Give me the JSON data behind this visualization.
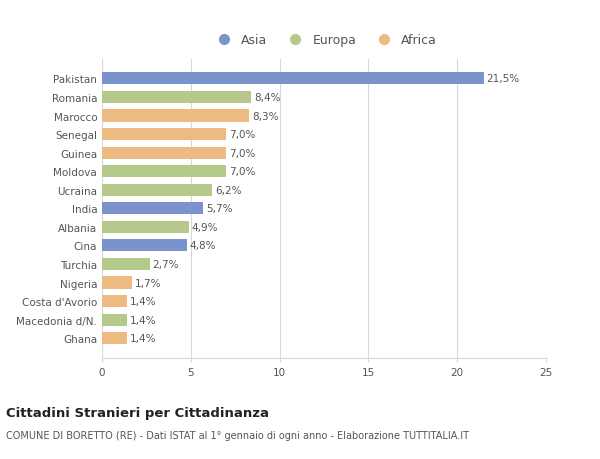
{
  "categories": [
    "Pakistan",
    "Romania",
    "Marocco",
    "Senegal",
    "Guinea",
    "Moldova",
    "Ucraina",
    "India",
    "Albania",
    "Cina",
    "Turchia",
    "Nigeria",
    "Costa d'Avorio",
    "Macedonia d/N.",
    "Ghana"
  ],
  "values": [
    21.5,
    8.4,
    8.3,
    7.0,
    7.0,
    7.0,
    6.2,
    5.7,
    4.9,
    4.8,
    2.7,
    1.7,
    1.4,
    1.4,
    1.4
  ],
  "labels": [
    "21,5%",
    "8,4%",
    "8,3%",
    "7,0%",
    "7,0%",
    "7,0%",
    "6,2%",
    "5,7%",
    "4,9%",
    "4,8%",
    "2,7%",
    "1,7%",
    "1,4%",
    "1,4%",
    "1,4%"
  ],
  "continents": [
    "Asia",
    "Europa",
    "Africa",
    "Africa",
    "Africa",
    "Europa",
    "Europa",
    "Asia",
    "Europa",
    "Asia",
    "Europa",
    "Africa",
    "Africa",
    "Europa",
    "Africa"
  ],
  "colors": {
    "Asia": "#7b93cc",
    "Europa": "#b5c98a",
    "Africa": "#edba82"
  },
  "legend": [
    "Asia",
    "Europa",
    "Africa"
  ],
  "legend_colors": [
    "#7b93cc",
    "#b5c98a",
    "#edba82"
  ],
  "xlim": [
    0,
    25
  ],
  "xticks": [
    0,
    5,
    10,
    15,
    20,
    25
  ],
  "title": "Cittadini Stranieri per Cittadinanza",
  "subtitle": "COMUNE DI BORETTO (RE) - Dati ISTAT al 1° gennaio di ogni anno - Elaborazione TUTTITALIA.IT",
  "bg_color": "#ffffff",
  "plot_bg_color": "#ffffff",
  "grid_color": "#d8d8d8",
  "bar_height": 0.65,
  "label_fontsize": 7.5,
  "tick_fontsize": 7.5,
  "title_fontsize": 9.5,
  "subtitle_fontsize": 7.0
}
